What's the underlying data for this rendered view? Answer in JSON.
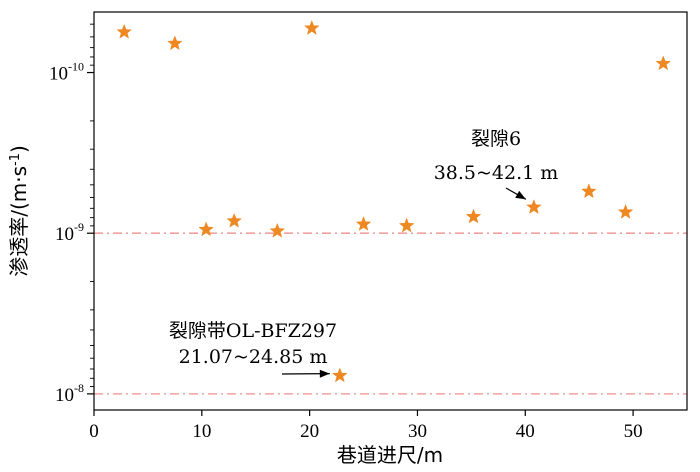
{
  "chart_data": {
    "type": "scatter",
    "xlabel": "巷道进尺/m",
    "ylabel_main": "渗透率/(m·s",
    "ylabel_sup": "-1",
    "ylabel_close": ")",
    "x_ticks": [
      0,
      10,
      20,
      30,
      40,
      50
    ],
    "xlim": [
      0,
      55
    ],
    "y_scale": "log-inverted",
    "y_ticks": [
      {
        "value": 1e-10,
        "base": "10",
        "exp": "-10"
      },
      {
        "value": 1e-09,
        "base": "10",
        "exp": "-9"
      },
      {
        "value": 1e-08,
        "base": "10",
        "exp": "-8"
      }
    ],
    "ylim_top": 4.2e-11,
    "ylim_bottom": 1.26e-08,
    "marker": "star",
    "marker_color": "#ee8822",
    "points": [
      {
        "x": 2.8,
        "y": 5.6e-11
      },
      {
        "x": 7.5,
        "y": 6.6e-11
      },
      {
        "x": 10.4,
        "y": 9.5e-10
      },
      {
        "x": 13.0,
        "y": 8.4e-10
      },
      {
        "x": 17.0,
        "y": 9.7e-10
      },
      {
        "x": 20.2,
        "y": 5.3e-11
      },
      {
        "x": 25.0,
        "y": 8.8e-10
      },
      {
        "x": 29.0,
        "y": 9e-10
      },
      {
        "x": 35.2,
        "y": 7.9e-10
      },
      {
        "x": 40.8,
        "y": 6.9e-10
      },
      {
        "x": 45.9,
        "y": 5.5e-10
      },
      {
        "x": 49.3,
        "y": 7.4e-10
      },
      {
        "x": 52.8,
        "y": 8.8e-11
      },
      {
        "x": 22.8,
        "y": 7.7e-09
      }
    ],
    "ref_lines": [
      {
        "y": 1e-09,
        "color": "#f2a0a0",
        "style": "dashdot"
      },
      {
        "y": 1e-08,
        "color": "#f2a0a0",
        "style": "dashdot"
      }
    ],
    "annotations": [
      {
        "lines": [
          "裂隙6",
          "38.5~42.1 m"
        ],
        "target": {
          "x": 40.8,
          "y": 6.9e-10
        }
      },
      {
        "lines": [
          "裂隙带OL-BFZ297",
          "21.07~24.85 m"
        ],
        "target": {
          "x": 22.8,
          "y": 7.7e-09
        }
      }
    ]
  }
}
